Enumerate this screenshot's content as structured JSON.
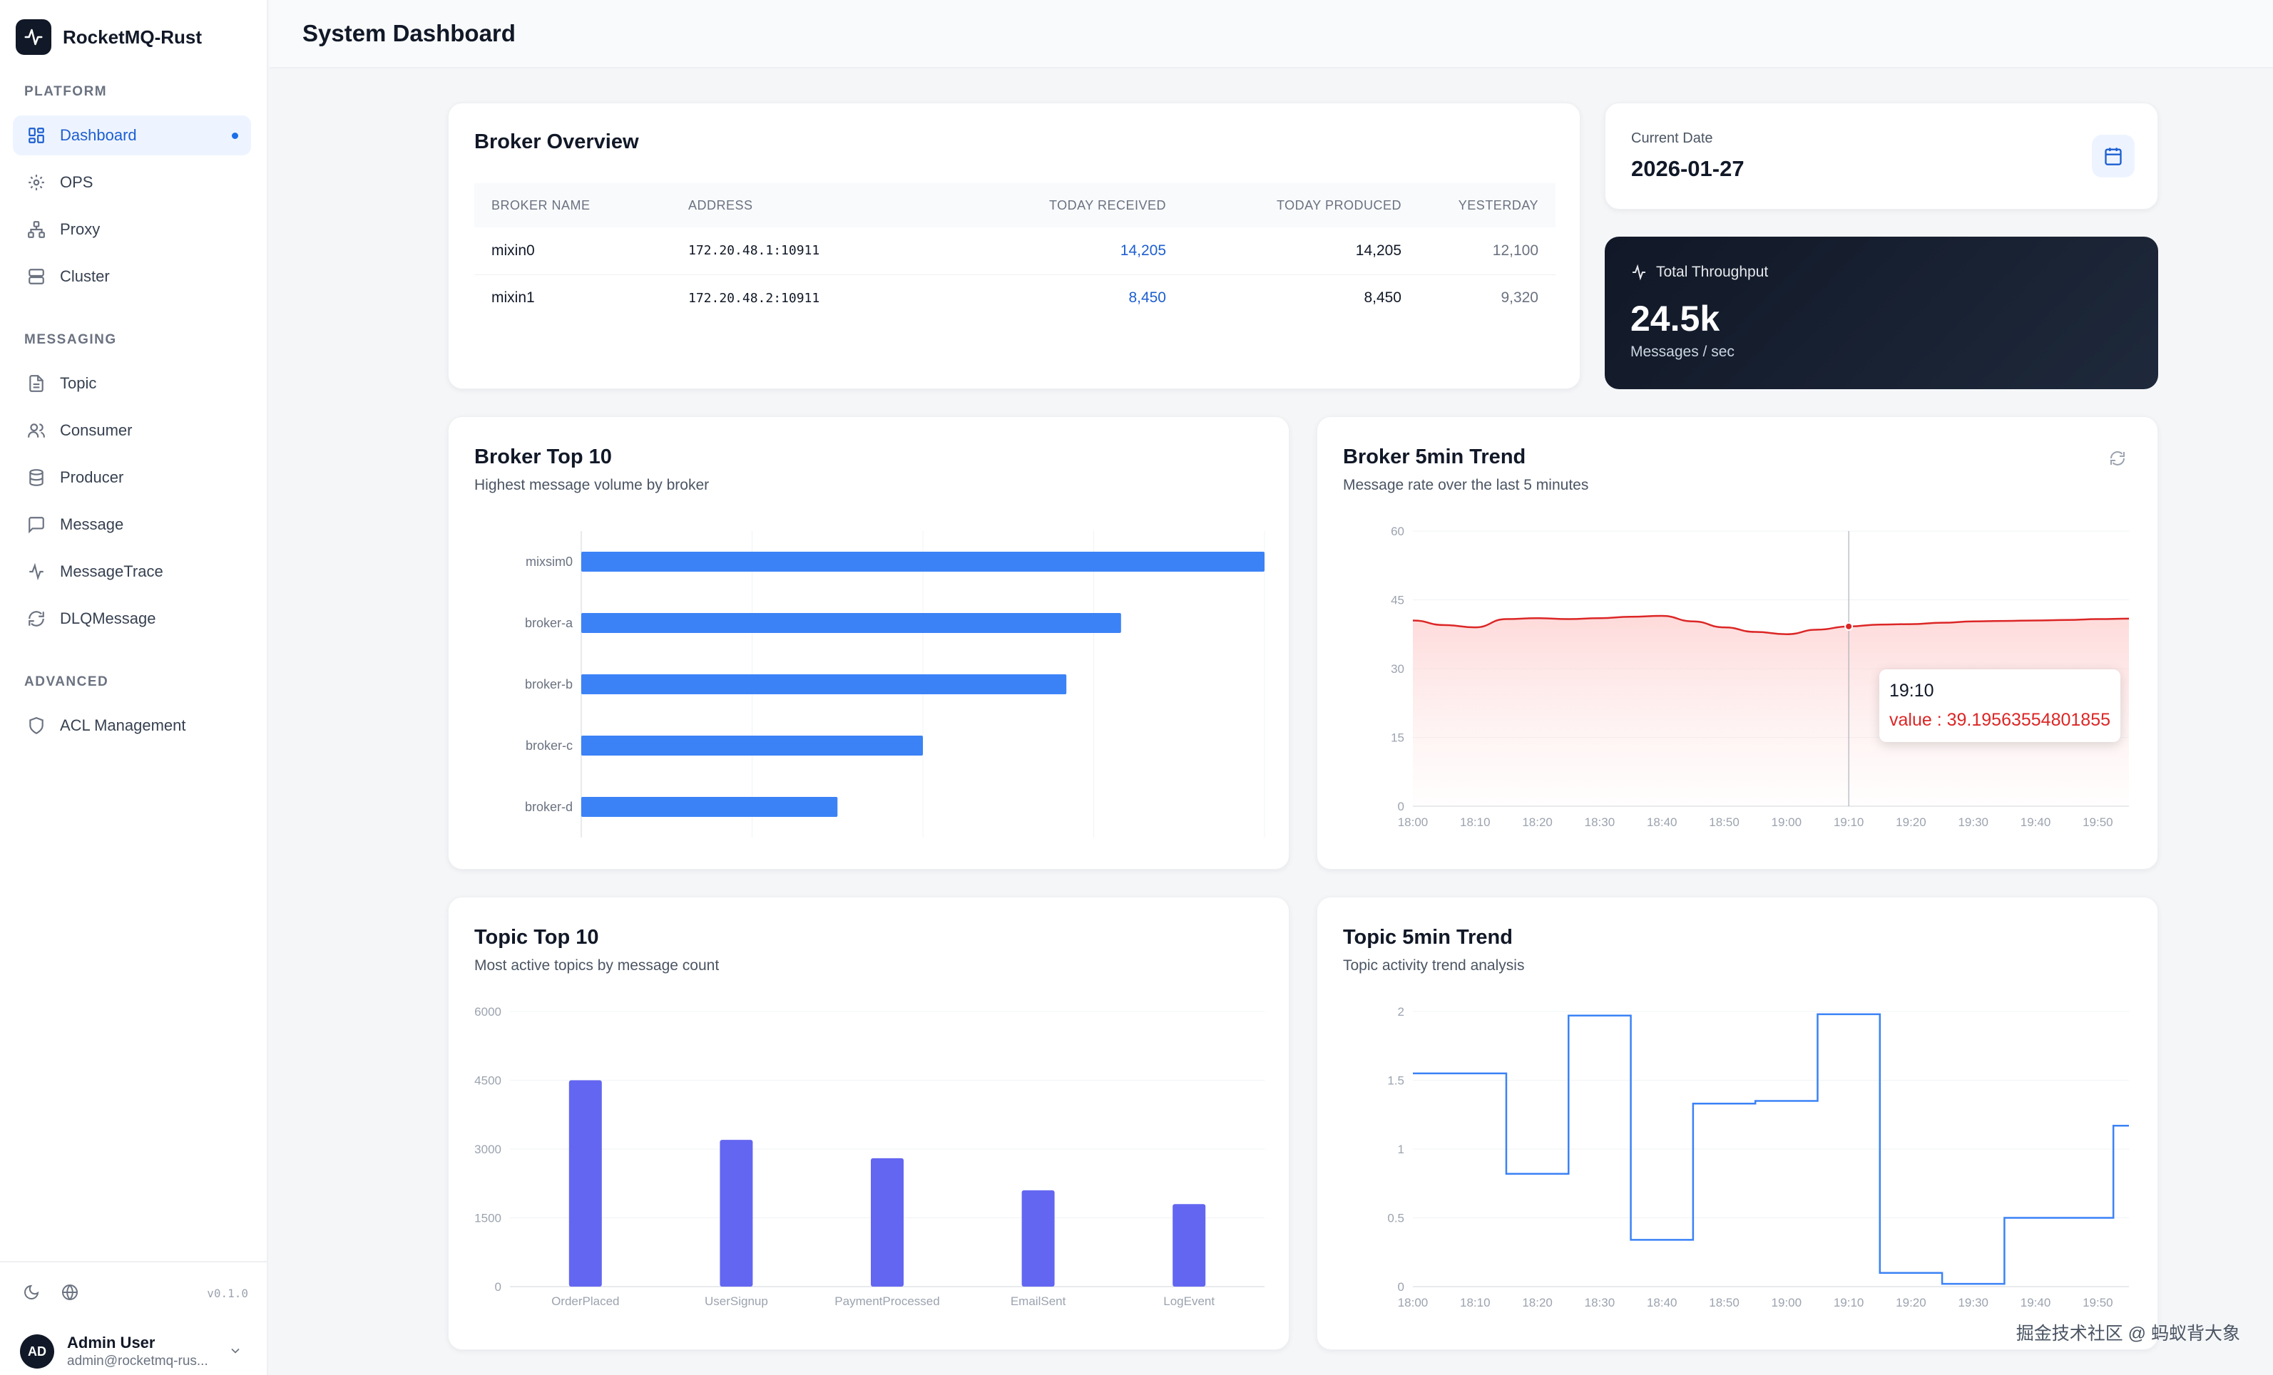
{
  "app": {
    "name": "RocketMQ-Rust",
    "version": "v0.1.0"
  },
  "sidebar": {
    "sections": [
      {
        "title": "PLATFORM",
        "items": [
          {
            "label": "Dashboard",
            "icon": "dashboard-icon",
            "active": true
          },
          {
            "label": "OPS",
            "icon": "gear-icon"
          },
          {
            "label": "Proxy",
            "icon": "network-icon"
          },
          {
            "label": "Cluster",
            "icon": "server-icon"
          }
        ]
      },
      {
        "title": "MESSAGING",
        "items": [
          {
            "label": "Topic",
            "icon": "file-text-icon"
          },
          {
            "label": "Consumer",
            "icon": "users-icon"
          },
          {
            "label": "Producer",
            "icon": "database-icon"
          },
          {
            "label": "Message",
            "icon": "message-square-icon"
          },
          {
            "label": "MessageTrace",
            "icon": "activity-icon"
          },
          {
            "label": "DLQMessage",
            "icon": "refresh-icon"
          }
        ]
      },
      {
        "title": "ADVANCED",
        "items": [
          {
            "label": "ACL Management",
            "icon": "shield-icon"
          }
        ]
      }
    ]
  },
  "user": {
    "initials": "AD",
    "name": "Admin User",
    "email": "admin@rocketmq-rus..."
  },
  "header": {
    "title": "System Dashboard"
  },
  "broker_overview": {
    "title": "Broker Overview",
    "columns": [
      "BROKER NAME",
      "ADDRESS",
      "TODAY RECEIVED",
      "TODAY PRODUCED",
      "YESTERDAY"
    ],
    "rows": [
      {
        "name": "mixin0",
        "address": "172.20.48.1:10911",
        "received": "14,205",
        "produced": "14,205",
        "yesterday": "12,100"
      },
      {
        "name": "mixin1",
        "address": "172.20.48.2:10911",
        "received": "8,450",
        "produced": "8,450",
        "yesterday": "9,320"
      }
    ]
  },
  "current_date": {
    "label": "Current Date",
    "value": "2026-01-27"
  },
  "throughput": {
    "label": "Total Throughput",
    "value": "24.5k",
    "unit": "Messages / sec"
  },
  "broker_top10": {
    "title": "Broker Top 10",
    "subtitle": "Highest message volume by broker"
  },
  "broker_trend": {
    "title": "Broker 5min Trend",
    "subtitle": "Message rate over the last 5 minutes",
    "tooltip": {
      "time": "19:10",
      "label": "value : 39.19563554801855"
    }
  },
  "topic_top10": {
    "title": "Topic Top 10",
    "subtitle": "Most active topics by message count"
  },
  "topic_trend": {
    "title": "Topic 5min Trend",
    "subtitle": "Topic activity trend analysis"
  },
  "watermark": "掘金技术社区 @ 蚂蚁背大象",
  "colors": {
    "accent": "#1d5fd1",
    "bar_blue": "#3b82f6",
    "bar_purple": "#6366f1",
    "trend_red": "#dc2626",
    "step_blue": "#3b82f6"
  },
  "chart_data": [
    {
      "id": "broker_top10",
      "type": "bar",
      "orientation": "horizontal",
      "categories": [
        "mixsim0",
        "broker-a",
        "broker-b",
        "broker-c",
        "broker-d"
      ],
      "values": [
        100,
        79,
        71,
        50,
        37.5
      ],
      "xlim": [
        0,
        100
      ],
      "grid": true
    },
    {
      "id": "broker_trend",
      "type": "area",
      "x": [
        "18:00",
        "18:05",
        "18:10",
        "18:15",
        "18:20",
        "18:25",
        "18:30",
        "18:35",
        "18:40",
        "18:45",
        "18:50",
        "18:55",
        "19:00",
        "19:05",
        "19:10",
        "19:15",
        "19:20",
        "19:25",
        "19:30",
        "19:35",
        "19:40",
        "19:45",
        "19:50",
        "19:55"
      ],
      "values": [
        40.5,
        39.5,
        39.0,
        40.8,
        41.0,
        40.8,
        41.0,
        41.3,
        41.5,
        40.3,
        39.0,
        38.0,
        37.5,
        38.5,
        39.2,
        39.6,
        39.7,
        40.0,
        40.3,
        40.4,
        40.5,
        40.6,
        40.8,
        40.9
      ],
      "ylim": [
        0,
        60
      ],
      "yticks": [
        0,
        15,
        30,
        45,
        60
      ],
      "xticks": [
        "18:00",
        "18:10",
        "18:20",
        "18:30",
        "18:40",
        "18:50",
        "19:00",
        "19:10",
        "19:20",
        "19:30",
        "19:40",
        "19:50"
      ],
      "grid": true
    },
    {
      "id": "topic_top10",
      "type": "bar",
      "categories": [
        "OrderPlaced",
        "UserSignup",
        "PaymentProcessed",
        "EmailSent",
        "LogEvent"
      ],
      "values": [
        4500,
        3200,
        2800,
        2100,
        1800
      ],
      "ylim": [
        0,
        6000
      ],
      "yticks": [
        0,
        1500,
        3000,
        4500,
        6000
      ],
      "grid": true
    },
    {
      "id": "topic_trend",
      "type": "line",
      "step": true,
      "x": [
        "18:00",
        "18:10",
        "18:20",
        "18:30",
        "18:40",
        "18:50",
        "19:00",
        "19:10",
        "19:20",
        "19:30",
        "19:40",
        "19:50",
        "19:55"
      ],
      "values": [
        1.55,
        1.55,
        0.82,
        1.97,
        0.34,
        1.33,
        1.35,
        1.98,
        0.1,
        0.02,
        0.5,
        0.5,
        1.17
      ],
      "ylim": [
        0,
        2
      ],
      "yticks": [
        0,
        0.5,
        1,
        1.5,
        2
      ],
      "xticks": [
        "18:00",
        "18:10",
        "18:20",
        "18:30",
        "18:40",
        "18:50",
        "19:00",
        "19:10",
        "19:20",
        "19:30",
        "19:40",
        "19:50"
      ],
      "grid": true
    }
  ]
}
